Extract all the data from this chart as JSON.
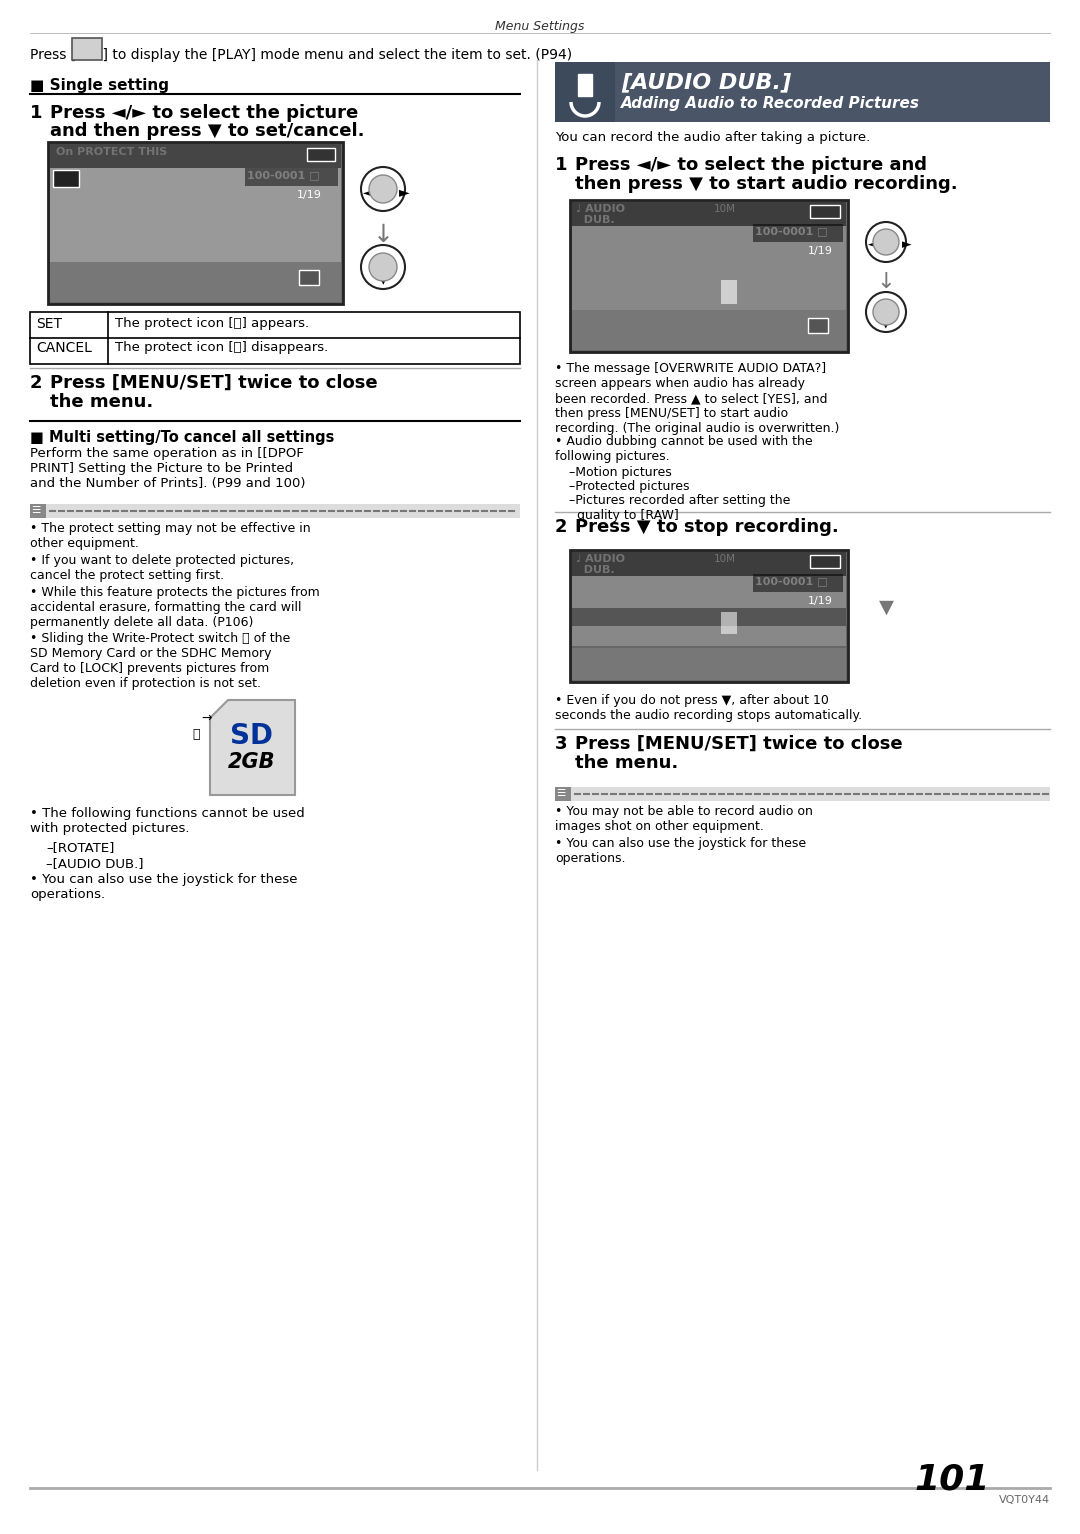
{
  "page_title": "Menu Settings",
  "page_number": "101",
  "page_code": "VQT0Y44",
  "bg_color": "#ffffff",
  "text_color": "#000000",
  "header_text": "Press [     ] to display the [PLAY] mode menu and select the item to set. (P94)",
  "left_column": {
    "section_title": "■ Single setting",
    "step1_line1": "Press ◄/► to select the picture",
    "step1_line2": "and then press ▼ to set/cancel.",
    "table": [
      {
        "col1": "SET",
        "col2": "The protect icon [ⓞ] appears."
      },
      {
        "col1": "CANCEL",
        "col2": "The protect icon [ⓞ] disappears."
      }
    ],
    "step2_line1": "Press [MENU/SET] twice to close",
    "step2_line2": "the menu.",
    "multi_section_title": "■ Multi setting/To cancel all settings",
    "multi_section_body": "Perform the same operation as in [[DPOF\nPRINT] Setting the Picture to be Printed\nand the Number of Prints]. (P99 and 100)",
    "note_items": [
      "The protect setting may not be effective in\nother equipment.",
      "If you want to delete protected pictures,\ncancel the protect setting first.",
      "While this feature protects the pictures from\naccidental erasure, formatting the card will\npermanently delete all data. (P106)",
      "Sliding the Write-Protect switch Ⓐ of the\nSD Memory Card or the SDHC Memory\nCard to [LOCK] prevents pictures from\ndeletion even if protection is not set."
    ],
    "sd_card_label": "Ⓐ",
    "sd_size": "2GB",
    "following_items": [
      "The following functions cannot be used\nwith protected pictures.",
      "–[ROTATE]",
      "–[AUDIO DUB.]",
      "You can also use the joystick for these\noperations."
    ]
  },
  "right_column": {
    "header_bg": "#4a5568",
    "header_title": "[AUDIO DUB.]",
    "header_subtitle": "Adding Audio to Recorded Pictures",
    "intro": "You can record the audio after taking a picture.",
    "step1_line1": "Press ◄/► to select the picture and",
    "step1_line2": "then press ▼ to start audio recording.",
    "bullets1": [
      "The message [OVERWRITE AUDIO DATA?]\nscreen appears when audio has already\nbeen recorded. Press ▲ to select [YES], and\nthen press [MENU/SET] to start audio\nrecording. (The original audio is overwritten.)",
      "Audio dubbing cannot be used with the\nfollowing pictures.",
      "–Motion pictures",
      "–Protected pictures",
      "–Pictures recorded after setting the\n  quality to [RAW]"
    ],
    "step2_line": "Press ▼ to stop recording.",
    "bullets2": [
      "Even if you do not press ▼, after about 10\nseconds the audio recording stops automatically."
    ],
    "step3_line1": "Press [MENU/SET] twice to close",
    "step3_line2": "the menu.",
    "note2_items": [
      "You may not be able to record audio on\nimages shot on other equipment.",
      "You can also use the joystick for these\noperations."
    ]
  }
}
